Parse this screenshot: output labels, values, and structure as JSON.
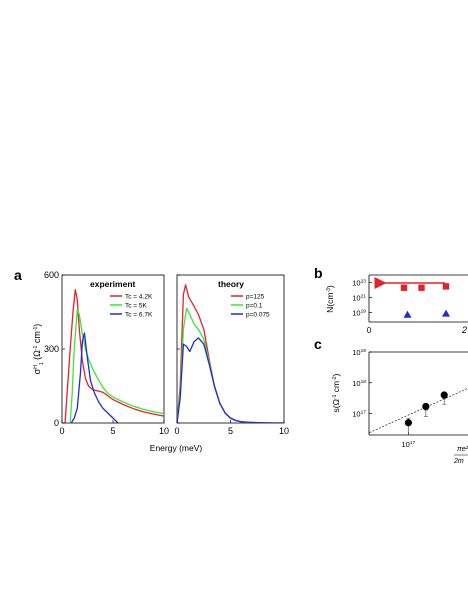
{
  "panel_labels": {
    "a": "a",
    "b": "b",
    "c": "c"
  },
  "colors": {
    "red": "#e8202a",
    "green": "#3ee43a",
    "blue": "#1f2bd6",
    "black": "#000000"
  },
  "chart_data": [
    {
      "id": "a-experiment",
      "type": "line",
      "title": "experiment",
      "xlabel": "Energy (meV)",
      "ylabel": "σ1H (Ω-1 cm-1)",
      "xlim": [
        0,
        10
      ],
      "ylim": [
        0,
        600
      ],
      "xticks": [
        "0",
        "5",
        "10"
      ],
      "yticks": [
        "0",
        "300",
        "600"
      ],
      "legend": "top-right",
      "series": [
        {
          "name": "Tc = 4.2K",
          "color": "#e8202a",
          "x": [
            0.3,
            0.5,
            0.8,
            1.1,
            1.3,
            1.5,
            1.7,
            2.0,
            2.3,
            2.6,
            3.0,
            3.5,
            4.0,
            4.5,
            5.0,
            6.0,
            7.0,
            8.0,
            9.0,
            10.0
          ],
          "y": [
            0,
            120,
            300,
            460,
            540,
            500,
            380,
            250,
            180,
            150,
            135,
            130,
            125,
            110,
            95,
            75,
            58,
            45,
            36,
            28
          ]
        },
        {
          "name": "Tc = 5K",
          "color": "#3ee43a",
          "x": [
            0.8,
            1.0,
            1.2,
            1.5,
            1.7,
            2.0,
            2.3,
            2.6,
            3.0,
            3.5,
            4.0,
            4.5,
            5.0,
            6.0,
            7.0,
            8.0,
            9.0,
            10.0
          ],
          "y": [
            0,
            120,
            300,
            460,
            440,
            360,
            300,
            260,
            220,
            180,
            145,
            120,
            105,
            85,
            68,
            55,
            45,
            38
          ]
        },
        {
          "name": "Tc = 6.7K",
          "color": "#1f2bd6",
          "x": [
            0.9,
            1.2,
            1.5,
            1.8,
            2.0,
            2.2,
            2.5,
            2.8,
            3.2,
            3.6,
            4.0,
            4.5,
            5.0,
            5.5
          ],
          "y": [
            0,
            20,
            60,
            200,
            330,
            365,
            260,
            170,
            120,
            85,
            60,
            40,
            20,
            0
          ]
        }
      ]
    },
    {
      "id": "a-theory",
      "type": "line",
      "title": "theory",
      "xlabel": "",
      "ylabel": "",
      "xlim": [
        0,
        10
      ],
      "ylim": [
        0,
        600
      ],
      "xticks": [
        "0",
        "5",
        "10"
      ],
      "legend": "top-right",
      "series": [
        {
          "name": "p=125",
          "color": "#e8202a",
          "x": [
            0.0,
            0.3,
            0.6,
            0.8,
            1.1,
            1.5,
            2.0,
            2.5,
            3.0,
            3.5,
            4.0,
            4.5,
            5.0,
            5.5,
            6.0,
            7.0,
            8.0,
            9.0,
            10.0
          ],
          "y": [
            0,
            150,
            520,
            560,
            510,
            480,
            440,
            380,
            260,
            150,
            80,
            40,
            20,
            10,
            5,
            2,
            1,
            0,
            0
          ]
        },
        {
          "name": "p=0.1",
          "color": "#3ee43a",
          "x": [
            0.0,
            0.3,
            0.6,
            0.9,
            1.2,
            1.6,
            2.0,
            2.5,
            3.0,
            3.5,
            4.0,
            4.5,
            5.0,
            5.5,
            6.0,
            7.0,
            8.0,
            9.0,
            10.0
          ],
          "y": [
            0,
            120,
            380,
            465,
            440,
            400,
            380,
            340,
            250,
            150,
            80,
            40,
            20,
            10,
            5,
            2,
            1,
            0,
            0
          ]
        },
        {
          "name": "p=0.075",
          "color": "#1f2bd6",
          "x": [
            0.0,
            0.3,
            0.6,
            0.9,
            1.2,
            1.6,
            2.0,
            2.5,
            3.0,
            3.5,
            4.0,
            4.5,
            5.0,
            5.5,
            6.0,
            7.0,
            8.0,
            9.0,
            10.0
          ],
          "y": [
            0,
            100,
            320,
            310,
            290,
            330,
            345,
            320,
            240,
            150,
            80,
            40,
            20,
            10,
            5,
            2,
            1,
            0,
            0
          ]
        }
      ]
    },
    {
      "id": "b",
      "type": "scatter",
      "ylabel": "N(cm-3)",
      "xticks": [
        "0"
      ],
      "yscale": "log",
      "ylim": [
        1e+18,
        1e+24
      ],
      "yticks": [
        "10^23",
        "10^21",
        "10^19"
      ],
      "annotation": "red arrow pointing left",
      "series": [
        {
          "name": "",
          "marker": "square",
          "color": "#e8202a",
          "x": [
            1.0,
            1.5,
            2.2
          ],
          "y": [
            2e+22,
            2e+22,
            3e+22
          ]
        },
        {
          "name": "",
          "marker": "triangle",
          "color": "#1f2bd6",
          "x": [
            1.1,
            2.2
          ],
          "y": [
            5e+18,
            7e+18
          ]
        }
      ]
    },
    {
      "id": "c",
      "type": "scatter",
      "ylabel": "s(Ω-1 cm-2)",
      "xscale": "log",
      "yscale": "log",
      "xlim": [
        4e+16,
        4e+17
      ],
      "ylim": [
        2e+16,
        1e+19
      ],
      "xticks": [
        "10^17"
      ],
      "yticks": [
        "10^19",
        "10^18",
        "10^17"
      ],
      "fit_line": "dashed",
      "x_annotation": "πe²/2m",
      "series": [
        {
          "name": "",
          "marker": "circle",
          "color": "#000000",
          "x": [
            1e+17,
            1.5e+17,
            2.3e+17
          ],
          "y": [
            5e+16,
            1.7e+17,
            4e+17
          ],
          "yerr_low": [
            2e+16,
            8e+16,
            3e+17
          ],
          "yerr_high": [
            7e+16,
            1.3e+17,
            2e+17
          ]
        }
      ]
    }
  ]
}
